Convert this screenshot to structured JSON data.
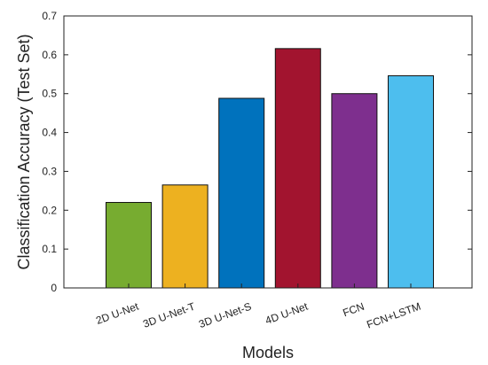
{
  "chart_data": {
    "type": "bar",
    "categories": [
      "2D U-Net",
      "3D U-Net-T",
      "3D U-Net-S",
      "4D U-Net",
      "FCN",
      "FCN+LSTM"
    ],
    "values": [
      0.22,
      0.265,
      0.488,
      0.616,
      0.5,
      0.546
    ],
    "colors": [
      "#77ac30",
      "#edb120",
      "#0072bd",
      "#a2142f",
      "#7e2f8e",
      "#4dbeee"
    ],
    "xlabel": "Models",
    "ylabel": "Classification Accuracy (Test Set)",
    "ylim": [
      0,
      0.7
    ],
    "yticks": [
      "0",
      "0.1",
      "0.2",
      "0.3",
      "0.4",
      "0.5",
      "0.6",
      "0.7"
    ],
    "grid": false
  }
}
